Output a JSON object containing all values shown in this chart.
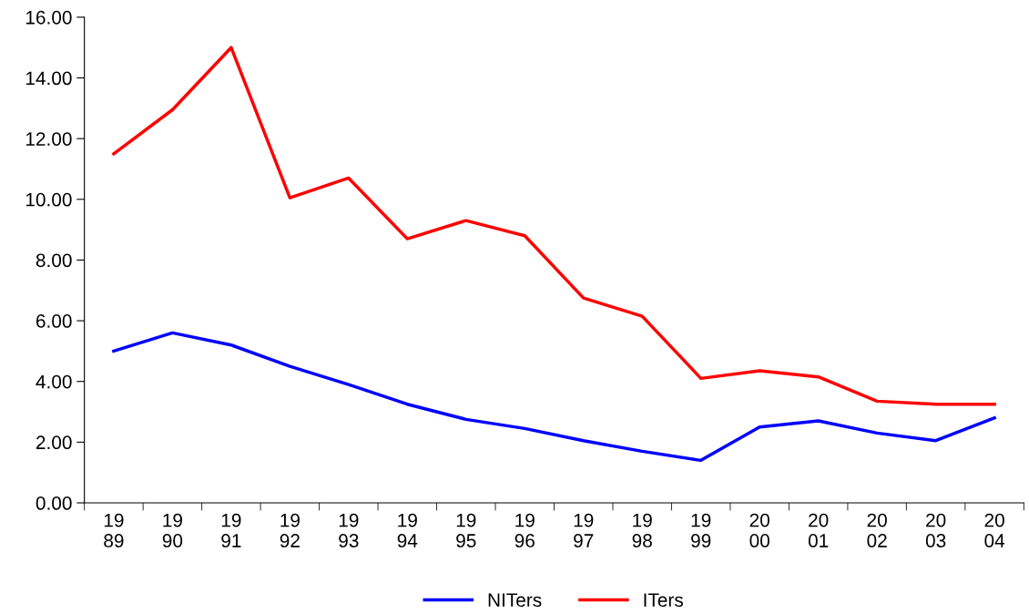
{
  "chart_data": {
    "type": "line",
    "categories": [
      "19\n89",
      "19\n90",
      "19\n91",
      "19\n92",
      "19\n93",
      "19\n94",
      "19\n95",
      "19\n96",
      "19\n97",
      "19\n98",
      "19\n99",
      "20\n00",
      "20\n01",
      "20\n02",
      "20\n03",
      "20\n04"
    ],
    "series": [
      {
        "name": "NITers",
        "color": "#0000ff",
        "values": [
          5.0,
          5.6,
          5.2,
          4.5,
          3.9,
          3.25,
          2.75,
          2.45,
          2.05,
          1.7,
          1.4,
          2.5,
          2.7,
          2.3,
          2.05,
          2.8
        ]
      },
      {
        "name": "ITers",
        "color": "#ff0000",
        "values": [
          11.5,
          12.95,
          15.0,
          10.05,
          10.7,
          8.7,
          9.3,
          8.8,
          6.75,
          6.15,
          4.1,
          4.35,
          4.15,
          3.35,
          3.25,
          3.25
        ]
      }
    ],
    "ylim": [
      0,
      16
    ],
    "yticks": [
      {
        "value": 0,
        "label": "0.00"
      },
      {
        "value": 2,
        "label": "2.00"
      },
      {
        "value": 4,
        "label": "4.00"
      },
      {
        "value": 6,
        "label": "6.00"
      },
      {
        "value": 8,
        "label": "8.00"
      },
      {
        "value": 10,
        "label": "10.00"
      },
      {
        "value": 12,
        "label": "12.00"
      },
      {
        "value": 14,
        "label": "14.00"
      },
      {
        "value": 16,
        "label": "16.00"
      }
    ],
    "grid": false,
    "legend": "bottom",
    "marker": "none",
    "line_style": "solid"
  }
}
